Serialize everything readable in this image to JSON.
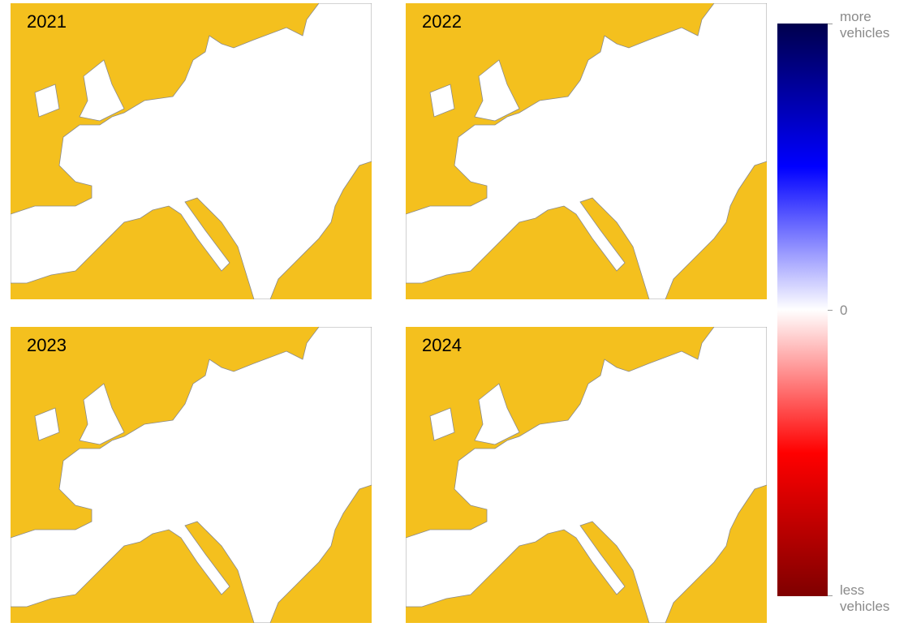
{
  "panels": [
    {
      "label": "2021"
    },
    {
      "label": "2022"
    },
    {
      "label": "2023"
    },
    {
      "label": "2024"
    }
  ],
  "colorbar": {
    "top_label": "more vehicles",
    "middle_label": "0",
    "bottom_label": "less vehicles"
  }
}
